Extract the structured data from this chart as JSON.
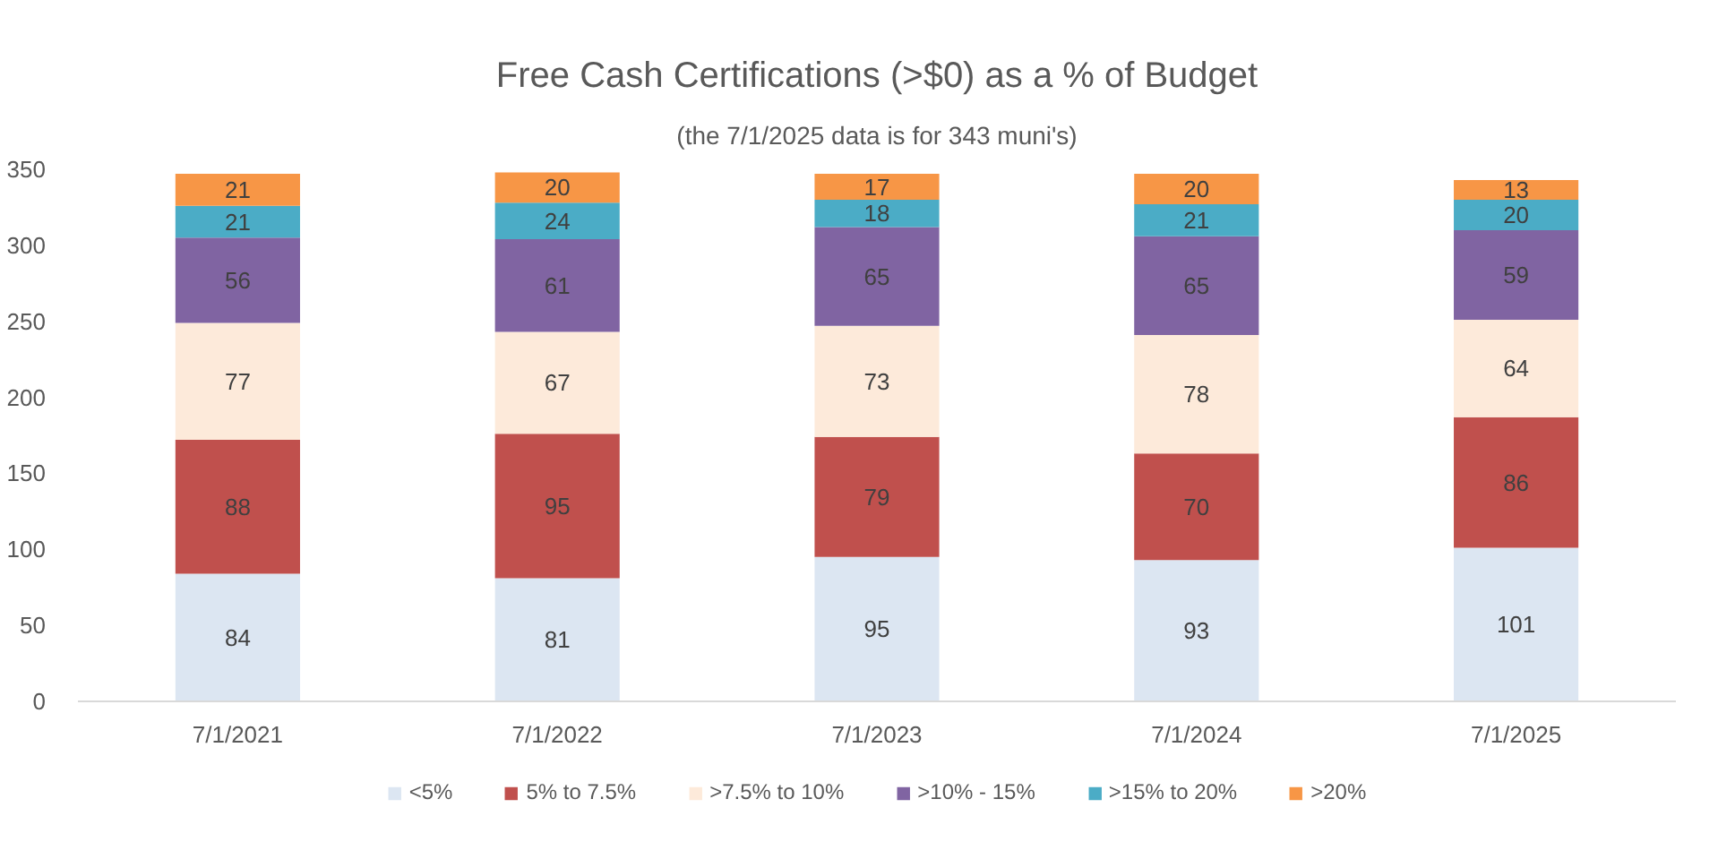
{
  "chart_data": {
    "type": "bar",
    "title": "Free Cash Certifications (>$0) as a % of Budget",
    "subtitle": "(the 7/1/2025 data is for 343 muni's)",
    "categories": [
      "7/1/2021",
      "7/1/2022",
      "7/1/2023",
      "7/1/2024",
      "7/1/2025"
    ],
    "stacked": true,
    "series": [
      {
        "name": "<5%",
        "color": "#dce6f2",
        "values": [
          84,
          81,
          95,
          93,
          101
        ]
      },
      {
        "name": "5% to 7.5%",
        "color": "#c0504d",
        "values": [
          88,
          95,
          79,
          70,
          86
        ]
      },
      {
        "name": ">7.5% to 10%",
        "color": "#fdeada",
        "values": [
          77,
          67,
          73,
          78,
          64
        ]
      },
      {
        "name": ">10% - 15%",
        "color": "#8064a2",
        "values": [
          56,
          61,
          65,
          65,
          59
        ]
      },
      {
        "name": ">15% to 20%",
        "color": "#4bacc6",
        "values": [
          21,
          24,
          18,
          21,
          20
        ]
      },
      {
        "name": ">20%",
        "color": "#f79646",
        "values": [
          21,
          20,
          17,
          20,
          13
        ]
      }
    ],
    "ylim": [
      0,
      350
    ],
    "yticks": [
      0,
      50,
      100,
      150,
      200,
      250,
      300,
      350
    ],
    "grid": false,
    "legend": "bottom",
    "data_labels": true
  }
}
